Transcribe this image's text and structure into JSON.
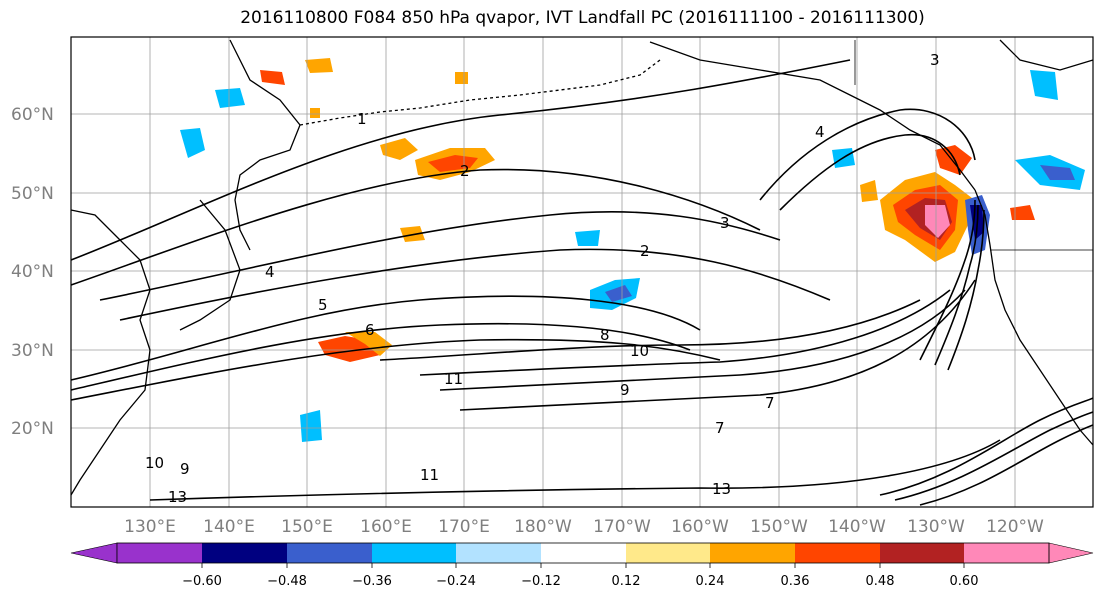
{
  "title": "2016110800 F084 850 hPa qvapor, IVT Landfall PC (2016111100 - 2016111300)",
  "map": {
    "lat_labels": [
      "60°N",
      "50°N",
      "40°N",
      "30°N",
      "20°N"
    ],
    "lon_labels": [
      "130°E",
      "140°E",
      "150°E",
      "160°E",
      "170°E",
      "180°W",
      "170°W",
      "160°W",
      "150°W",
      "140°W",
      "130°W",
      "120°W"
    ],
    "contour_labels": [
      "1",
      "2",
      "3",
      "4",
      "5",
      "6",
      "8",
      "10",
      "11",
      "9",
      "7",
      "13",
      "2",
      "3",
      "4",
      "7",
      "11",
      "13",
      "10",
      "9"
    ]
  },
  "colorbar": {
    "ticks": [
      "−0.60",
      "−0.48",
      "−0.36",
      "−0.24",
      "−0.12",
      "0.12",
      "0.24",
      "0.36",
      "0.48",
      "0.60"
    ],
    "colors": [
      "#9932CC",
      "#000080",
      "#3A5FCD",
      "#00BFFF",
      "#B2E2FF",
      "#FFFFFF",
      "#FFE98A",
      "#FFA500",
      "#FF4500",
      "#B22222",
      "#FF88B8"
    ]
  },
  "chart_data": {
    "type": "heatmap",
    "title": "2016110800 F084 850 hPa qvapor, IVT Landfall PC (2016111100 - 2016111300)",
    "latitudes": [
      "60°N",
      "50°N",
      "40°N",
      "30°N",
      "20°N"
    ],
    "longitudes": [
      "130°E",
      "140°E",
      "150°E",
      "160°E",
      "170°E",
      "180°W",
      "170°W",
      "160°W",
      "150°W",
      "140°W",
      "130°W",
      "120°W"
    ],
    "colorbar_levels": [
      -0.6,
      -0.48,
      -0.36,
      -0.24,
      -0.12,
      0.12,
      0.24,
      0.36,
      0.48,
      0.6
    ],
    "colorbar_extend": "both",
    "grid": true
  }
}
